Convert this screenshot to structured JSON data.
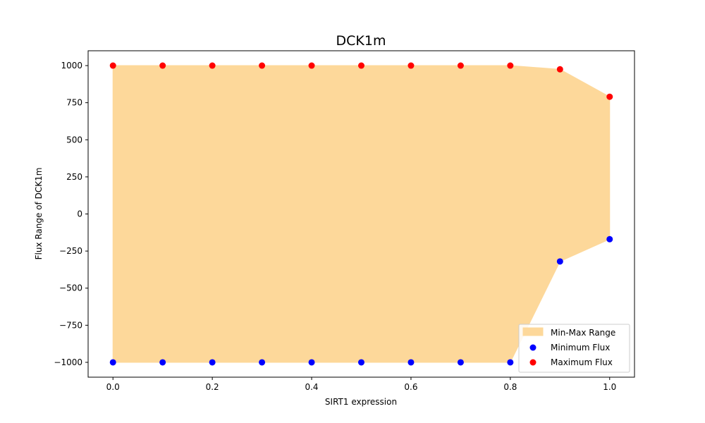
{
  "chart_data": {
    "type": "scatter",
    "title": "DCK1m",
    "xlabel": "SIRT1 expression",
    "ylabel": "Flux Range of DCK1m",
    "xlim": [
      -0.05,
      1.05
    ],
    "ylim": [
      -1100,
      1100
    ],
    "x_ticks": [
      "0.0",
      "0.2",
      "0.4",
      "0.6",
      "0.8",
      "1.0"
    ],
    "x_tick_values": [
      0.0,
      0.2,
      0.4,
      0.6,
      0.8,
      1.0
    ],
    "y_ticks": [
      "1000",
      "750",
      "500",
      "250",
      "0",
      "−250",
      "−500",
      "−750",
      "−1000"
    ],
    "y_tick_values": [
      1000,
      750,
      500,
      250,
      0,
      -250,
      -500,
      -750,
      -1000
    ],
    "grid": false,
    "legend_position": "lower-right",
    "x": [
      0.0,
      0.1,
      0.2,
      0.3,
      0.4,
      0.5,
      0.6,
      0.7,
      0.8,
      0.9,
      1.0
    ],
    "range_band": {
      "name": "Min-Max Range",
      "color": "#fdd89a"
    },
    "series": [
      {
        "name": "Minimum Flux",
        "color": "#0000ff",
        "values": [
          -1000,
          -1000,
          -1000,
          -1000,
          -1000,
          -1000,
          -1000,
          -1000,
          -1000,
          -320,
          -170
        ]
      },
      {
        "name": "Maximum Flux",
        "color": "#ff0000",
        "values": [
          1000,
          1000,
          1000,
          1000,
          1000,
          1000,
          1000,
          1000,
          1000,
          975,
          790
        ]
      }
    ]
  }
}
